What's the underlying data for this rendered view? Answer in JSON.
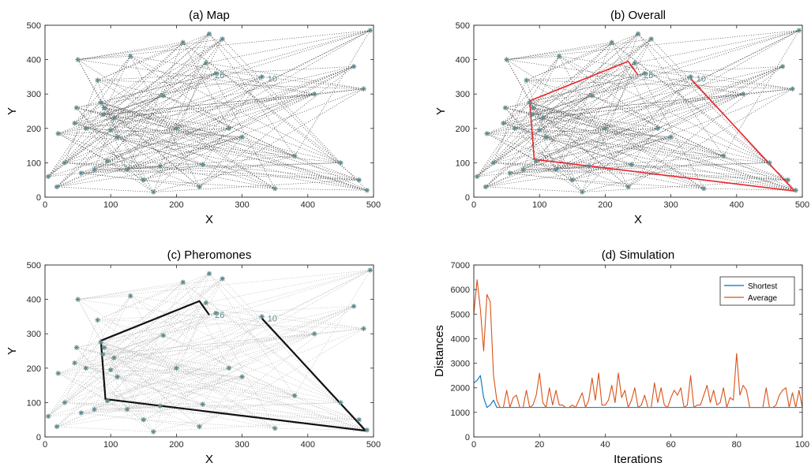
{
  "colors": {
    "background": "#ffffff",
    "axis": "#262626",
    "edge": "#555555",
    "edge_light": "#bdbdbd",
    "node": "#5f8a8b",
    "route_overall": "#e8262b",
    "route_pheromone": "#111111",
    "shortest": "#0072bd",
    "average": "#d95319"
  },
  "chart_data": [
    {
      "panel": "a",
      "type": "scatter",
      "title": "(a) Map",
      "xlabel": "X",
      "ylabel": "Y",
      "xlim": [
        0,
        500
      ],
      "ylim": [
        0,
        500
      ],
      "xticks": [
        0,
        100,
        200,
        300,
        400,
        500
      ],
      "yticks": [
        0,
        100,
        200,
        300,
        400,
        500
      ],
      "grid": false,
      "points_x": [
        5,
        20,
        18,
        30,
        45,
        48,
        50,
        55,
        62,
        75,
        80,
        85,
        88,
        90,
        95,
        100,
        105,
        110,
        125,
        130,
        150,
        165,
        175,
        180,
        200,
        210,
        235,
        240,
        245,
        250,
        260,
        270,
        280,
        300,
        330,
        350,
        380,
        410,
        450,
        470,
        478,
        485,
        490,
        495
      ],
      "points_y": [
        60,
        185,
        30,
        100,
        215,
        260,
        400,
        70,
        200,
        80,
        340,
        275,
        240,
        260,
        105,
        195,
        230,
        175,
        80,
        410,
        50,
        15,
        90,
        295,
        200,
        450,
        30,
        95,
        390,
        475,
        360,
        460,
        200,
        175,
        350,
        25,
        120,
        300,
        100,
        380,
        50,
        315,
        20,
        485
      ],
      "point_labels": [
        {
          "text": "26",
          "x": 255,
          "y": 355
        },
        {
          "text": "10",
          "x": 335,
          "y": 345
        }
      ]
    },
    {
      "panel": "b",
      "type": "scatter",
      "title": "(b) Overall",
      "xlabel": "X",
      "ylabel": "Y",
      "xlim": [
        0,
        500
      ],
      "ylim": [
        0,
        500
      ],
      "xticks": [
        0,
        100,
        200,
        300,
        400,
        500
      ],
      "yticks": [
        0,
        100,
        200,
        300,
        400,
        500
      ],
      "grid": false,
      "point_labels": [
        {
          "text": "26",
          "x": 255,
          "y": 355
        },
        {
          "text": "10",
          "x": 335,
          "y": 345
        }
      ],
      "route_x": [
        250,
        235,
        85,
        92,
        488,
        330
      ],
      "route_y": [
        355,
        395,
        280,
        110,
        18,
        345
      ]
    },
    {
      "panel": "c",
      "type": "scatter",
      "title": "(c) Pheromones",
      "xlabel": "X",
      "ylabel": "Y",
      "xlim": [
        0,
        500
      ],
      "ylim": [
        0,
        500
      ],
      "xticks": [
        0,
        100,
        200,
        300,
        400,
        500
      ],
      "yticks": [
        0,
        100,
        200,
        300,
        400,
        500
      ],
      "grid": false,
      "point_labels": [
        {
          "text": "26",
          "x": 255,
          "y": 355
        },
        {
          "text": "10",
          "x": 335,
          "y": 345
        }
      ],
      "route_x": [
        250,
        235,
        85,
        92,
        488,
        330
      ],
      "route_y": [
        355,
        395,
        280,
        110,
        18,
        345
      ]
    },
    {
      "panel": "d",
      "type": "line",
      "title": "(d) Simulation",
      "xlabel": "Iterations",
      "ylabel": "Distances",
      "xlim": [
        0,
        100
      ],
      "ylim": [
        0,
        7000
      ],
      "xticks": [
        0,
        20,
        40,
        60,
        80,
        100
      ],
      "yticks": [
        0,
        1000,
        2000,
        3000,
        4000,
        5000,
        6000,
        7000
      ],
      "grid": false,
      "legend_position": "top-right",
      "x": [
        0,
        1,
        2,
        3,
        4,
        5,
        6,
        7,
        8,
        9,
        10,
        11,
        12,
        13,
        14,
        15,
        16,
        17,
        18,
        19,
        20,
        21,
        22,
        23,
        24,
        25,
        26,
        27,
        28,
        29,
        30,
        31,
        32,
        33,
        34,
        35,
        36,
        37,
        38,
        39,
        40,
        41,
        42,
        43,
        44,
        45,
        46,
        47,
        48,
        49,
        50,
        51,
        52,
        53,
        54,
        55,
        56,
        57,
        58,
        59,
        60,
        61,
        62,
        63,
        64,
        65,
        66,
        67,
        68,
        69,
        70,
        71,
        72,
        73,
        74,
        75,
        76,
        77,
        78,
        79,
        80,
        81,
        82,
        83,
        84,
        85,
        86,
        87,
        88,
        89,
        90,
        91,
        92,
        93,
        94,
        95,
        96,
        97,
        98,
        99,
        100
      ],
      "series": [
        {
          "name": "Shortest",
          "values": [
            2200,
            2300,
            2500,
            1600,
            1200,
            1300,
            1500,
            1200,
            1200,
            1200,
            1200,
            1200,
            1200,
            1200,
            1200,
            1200,
            1200,
            1200,
            1200,
            1200,
            1200,
            1200,
            1200,
            1200,
            1200,
            1200,
            1200,
            1200,
            1200,
            1200,
            1200,
            1200,
            1200,
            1200,
            1200,
            1200,
            1200,
            1200,
            1200,
            1200,
            1200,
            1200,
            1200,
            1200,
            1200,
            1200,
            1200,
            1200,
            1200,
            1200,
            1200,
            1200,
            1200,
            1200,
            1200,
            1200,
            1200,
            1200,
            1200,
            1200,
            1200,
            1200,
            1200,
            1200,
            1200,
            1200,
            1200,
            1200,
            1200,
            1200,
            1200,
            1200,
            1200,
            1200,
            1200,
            1200,
            1200,
            1200,
            1200,
            1200,
            1200,
            1200,
            1200,
            1200,
            1200,
            1200,
            1200,
            1200,
            1200,
            1200,
            1200,
            1200,
            1200,
            1200,
            1200,
            1200,
            1200,
            1200,
            1200,
            1200,
            1200
          ]
        },
        {
          "name": "Average",
          "values": [
            5000,
            6400,
            5200,
            3500,
            5800,
            5500,
            2500,
            1500,
            1200,
            1200,
            1900,
            1200,
            1600,
            1700,
            1200,
            1200,
            1900,
            1200,
            1300,
            1700,
            2600,
            1400,
            1200,
            2000,
            1300,
            1900,
            1300,
            1300,
            1200,
            1200,
            1300,
            1200,
            1500,
            1800,
            1200,
            1500,
            2400,
            1500,
            2600,
            1300,
            1300,
            1500,
            2100,
            1400,
            2600,
            1600,
            1900,
            1200,
            1500,
            2000,
            1200,
            1300,
            1700,
            1200,
            1200,
            2200,
            1400,
            2000,
            1300,
            1200,
            1600,
            1900,
            1700,
            2000,
            1200,
            1300,
            2500,
            1200,
            1300,
            1300,
            1700,
            2100,
            1400,
            1900,
            1300,
            1400,
            2000,
            1200,
            1600,
            1500,
            3400,
            1700,
            2100,
            1900,
            1200,
            1200,
            1200,
            1200,
            1200,
            2000,
            1200,
            1200,
            1300,
            1700,
            1900,
            2000,
            1200,
            1800,
            1200,
            1900,
            1200
          ]
        }
      ]
    }
  ]
}
